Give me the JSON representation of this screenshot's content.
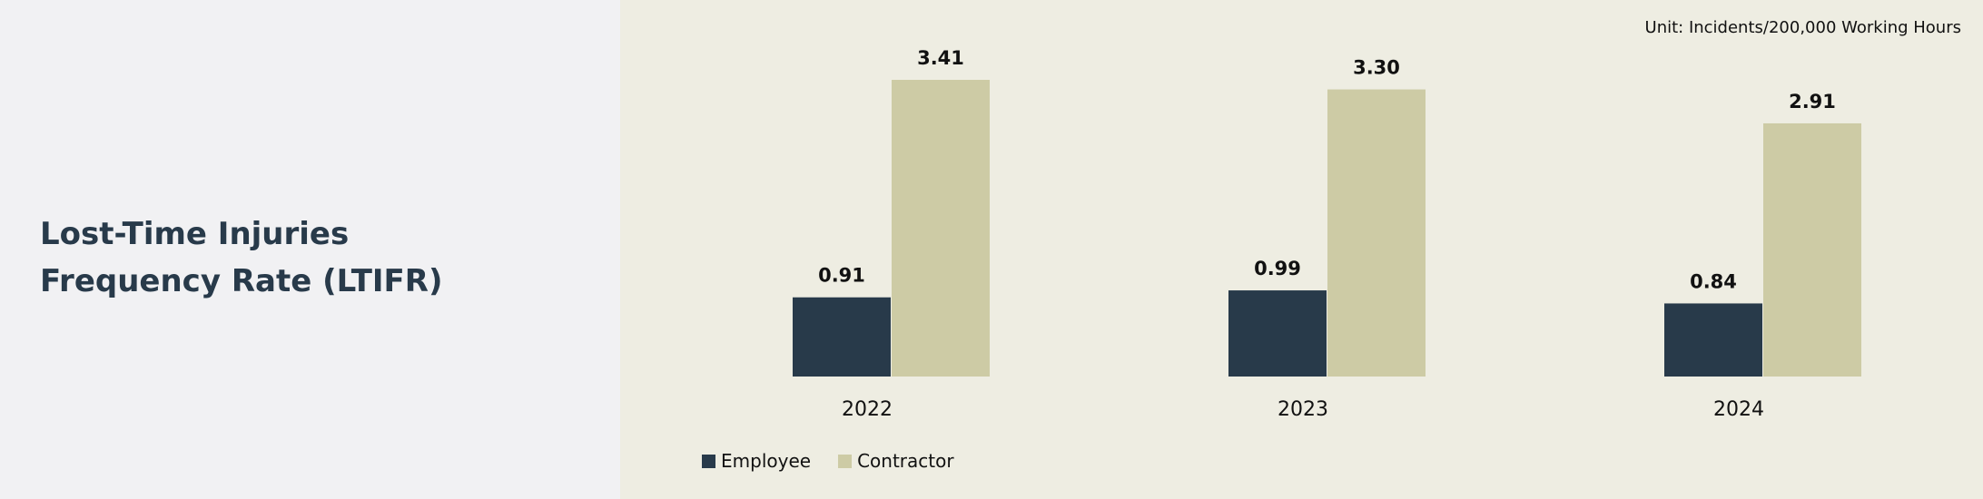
{
  "title": {
    "line1": "Lost-Time Injuries",
    "line2": "Frequency Rate (LTIFR)"
  },
  "unit_note": "Unit: Incidents/200,000 Working Hours",
  "colors": {
    "employee": "#283a4a",
    "contractor": "#cdcba5",
    "panel_bg": "#eeede2",
    "left_bg": "#f1f1f3"
  },
  "chart_data": {
    "type": "bar",
    "categories": [
      "2022",
      "2023",
      "2024"
    ],
    "series": [
      {
        "name": "Employee",
        "values": [
          0.91,
          0.99,
          0.84
        ],
        "labels": [
          "0.91",
          "0.99",
          "0.84"
        ]
      },
      {
        "name": "Contractor",
        "values": [
          3.41,
          3.3,
          2.91
        ],
        "labels": [
          "3.41",
          "3.30",
          "2.91"
        ]
      }
    ],
    "ylim": [
      0,
      3.41
    ],
    "grid": false,
    "legend_position": "bottom-left"
  }
}
